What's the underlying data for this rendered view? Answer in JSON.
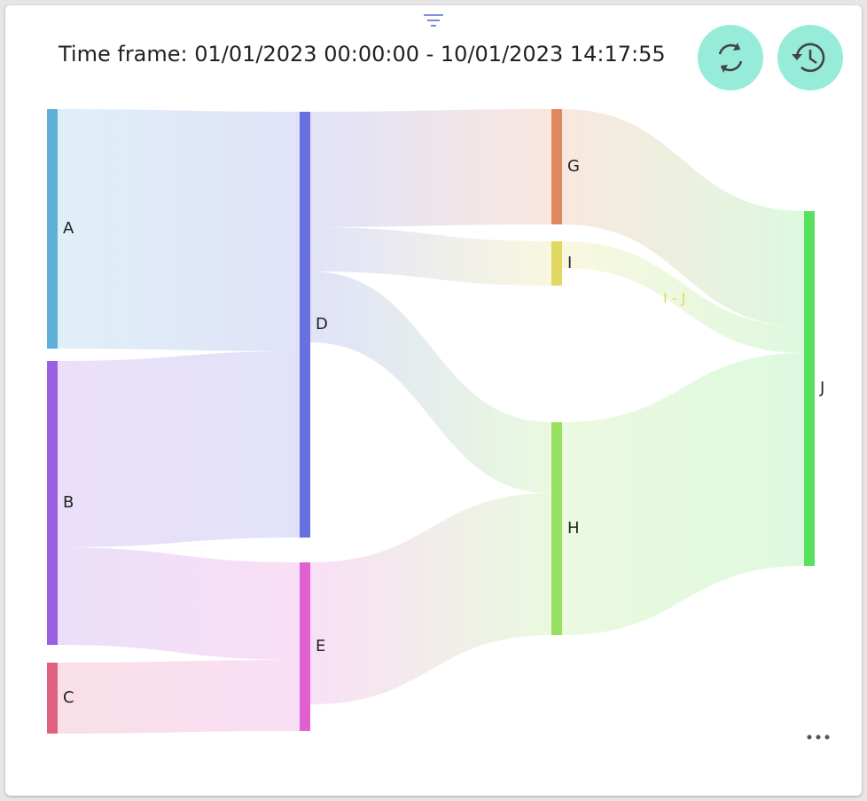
{
  "chart_data": {
    "type": "sankey",
    "title": "Time frame: 01/01/2023 00:00:00 - 10/01/2023 14:17:55",
    "nodes": [
      {
        "name": "A",
        "color": "#5fb0d8"
      },
      {
        "name": "B",
        "color": "#9b5fe0"
      },
      {
        "name": "C",
        "color": "#e06080"
      },
      {
        "name": "D",
        "color": "#6870e0"
      },
      {
        "name": "E",
        "color": "#e060d0"
      },
      {
        "name": "G",
        "color": "#e08860"
      },
      {
        "name": "I",
        "color": "#e0d860"
      },
      {
        "name": "H",
        "color": "#98e060"
      },
      {
        "name": "J",
        "color": "#58e060"
      }
    ],
    "links": [
      {
        "source": "A",
        "target": "D",
        "value": 27
      },
      {
        "source": "B",
        "target": "D",
        "value": 21
      },
      {
        "source": "B",
        "target": "E",
        "value": 11
      },
      {
        "source": "C",
        "target": "E",
        "value": 8
      },
      {
        "source": "D",
        "target": "G",
        "value": 13
      },
      {
        "source": "D",
        "target": "I",
        "value": 5
      },
      {
        "source": "D",
        "target": "H",
        "value": 8
      },
      {
        "source": "E",
        "target": "H",
        "value": 16
      },
      {
        "source": "G",
        "target": "J",
        "value": 13
      },
      {
        "source": "I",
        "target": "J",
        "value": 3
      },
      {
        "source": "H",
        "target": "J",
        "value": 24
      }
    ],
    "annotation": "I - J"
  }
}
